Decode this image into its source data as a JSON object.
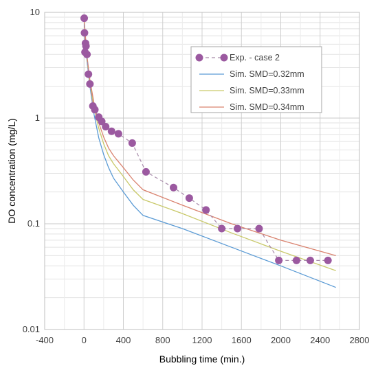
{
  "chart_data": {
    "type": "scatter",
    "xlabel": "Bubbling time (min.)",
    "ylabel": "DO concentration (mg/L)",
    "xlim": [
      -400,
      2800
    ],
    "ylim": [
      0.01,
      10
    ],
    "yscale": "log",
    "x_ticks": [
      -400,
      0,
      400,
      800,
      1200,
      1600,
      2000,
      2400,
      2800
    ],
    "y_ticks": [
      0.01,
      0.1,
      1,
      10
    ],
    "x_tick_labels": [
      "-400",
      "0",
      "400",
      "800",
      "1200",
      "1600",
      "2000",
      "2400",
      "2800"
    ],
    "y_tick_labels": [
      "0.01",
      "0.1",
      "1",
      "10"
    ],
    "grid": true,
    "legend_position": "top-right",
    "series": [
      {
        "name": "Exp. - case 2",
        "kind": "markers-dashed",
        "color": "#9b59a0",
        "x": [
          2,
          5,
          10,
          15,
          20,
          30,
          45,
          60,
          90,
          110,
          150,
          180,
          220,
          280,
          350,
          490,
          630,
          910,
          1070,
          1240,
          1400,
          1560,
          1780,
          1980,
          2160,
          2300,
          2480
        ],
        "y": [
          8.8,
          6.4,
          4.2,
          5.1,
          4.8,
          4.0,
          2.6,
          2.1,
          1.3,
          1.2,
          1.02,
          0.93,
          0.83,
          0.75,
          0.71,
          0.58,
          0.31,
          0.22,
          0.175,
          0.135,
          0.09,
          0.09,
          0.09,
          0.045,
          0.045,
          0.045,
          0.045
        ]
      },
      {
        "name": "Sim. SMD=0.32mm",
        "kind": "line",
        "color": "#5b9bd5",
        "x": [
          0,
          30,
          60,
          100,
          150,
          200,
          250,
          300,
          400,
          500,
          600,
          1000,
          1500,
          2000,
          2560
        ],
        "y": [
          8.8,
          3.5,
          2.0,
          1.1,
          0.65,
          0.45,
          0.34,
          0.27,
          0.2,
          0.15,
          0.12,
          0.09,
          0.06,
          0.04,
          0.025
        ]
      },
      {
        "name": "Sim. SMD=0.33mm",
        "kind": "line",
        "color": "#c9c96a",
        "x": [
          0,
          30,
          60,
          100,
          150,
          200,
          250,
          300,
          400,
          500,
          600,
          1000,
          1500,
          2000,
          2560
        ],
        "y": [
          8.8,
          3.7,
          2.15,
          1.25,
          0.8,
          0.57,
          0.44,
          0.37,
          0.28,
          0.21,
          0.17,
          0.125,
          0.082,
          0.055,
          0.036
        ]
      },
      {
        "name": "Sim. SMD=0.34mm",
        "kind": "line",
        "color": "#d9826e",
        "x": [
          0,
          30,
          60,
          100,
          150,
          200,
          250,
          300,
          400,
          500,
          600,
          1000,
          1500,
          2000,
          2560
        ],
        "y": [
          8.8,
          3.9,
          2.3,
          1.4,
          0.9,
          0.66,
          0.52,
          0.44,
          0.34,
          0.26,
          0.21,
          0.15,
          0.1,
          0.07,
          0.05
        ]
      }
    ]
  }
}
